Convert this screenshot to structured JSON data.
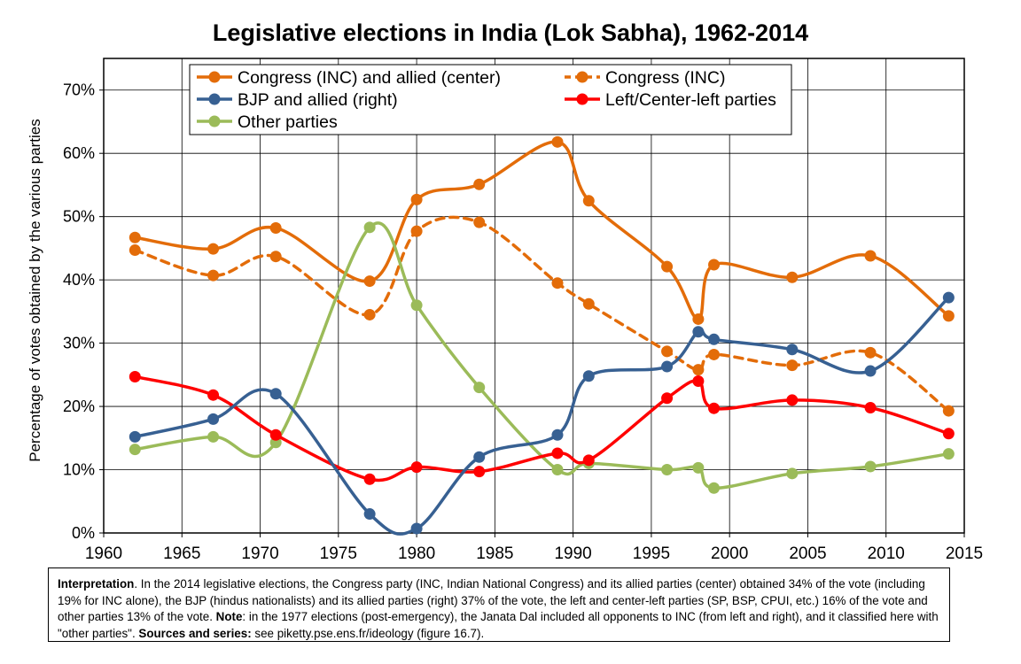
{
  "chart_data": {
    "type": "line",
    "title": "Legislative elections in India (Lok Sabha), 1962-2014",
    "xlabel": "",
    "ylabel": "Percentage of votes obtained by the various parties",
    "xlim": [
      1960,
      2015
    ],
    "ylim": [
      0,
      0.75
    ],
    "x_ticks": [
      1960,
      1965,
      1970,
      1975,
      1980,
      1985,
      1990,
      1995,
      2000,
      2005,
      2010,
      2015
    ],
    "y_ticks": [
      0,
      0.1,
      0.2,
      0.3,
      0.4,
      0.5,
      0.6,
      0.7
    ],
    "y_tick_labels": [
      "0%",
      "10%",
      "20%",
      "30%",
      "40%",
      "50%",
      "60%",
      "70%"
    ],
    "grid": true,
    "legend_position": "top",
    "series": [
      {
        "name": "Congress (INC) and allied (center)",
        "color": "#E36C09",
        "dashed": false,
        "x": [
          1962,
          1967,
          1971,
          1977,
          1980,
          1984,
          1989,
          1991,
          1996,
          1998,
          1999,
          2004,
          2009,
          2014
        ],
        "y": [
          0.467,
          0.449,
          0.482,
          0.398,
          0.527,
          0.551,
          0.618,
          0.525,
          0.421,
          0.338,
          0.424,
          0.404,
          0.438,
          0.343
        ]
      },
      {
        "name": "Congress (INC)",
        "color": "#E36C09",
        "dashed": true,
        "x": [
          1962,
          1967,
          1971,
          1977,
          1980,
          1984,
          1989,
          1991,
          1996,
          1998,
          1999,
          2004,
          2009,
          2014
        ],
        "y": [
          0.447,
          0.407,
          0.437,
          0.345,
          0.477,
          0.491,
          0.395,
          0.362,
          0.287,
          0.258,
          0.282,
          0.265,
          0.285,
          0.193
        ]
      },
      {
        "name": "BJP and allied (right)",
        "color": "#376092",
        "dashed": false,
        "x": [
          1962,
          1967,
          1971,
          1977,
          1980,
          1984,
          1989,
          1991,
          1996,
          1998,
          1999,
          2004,
          2009,
          2014
        ],
        "y": [
          0.152,
          0.18,
          0.22,
          0.03,
          0.007,
          0.12,
          0.155,
          0.248,
          0.263,
          0.318,
          0.306,
          0.29,
          0.256,
          0.372
        ]
      },
      {
        "name": "Left/Center-left parties",
        "color": "#FF0000",
        "dashed": false,
        "x": [
          1962,
          1967,
          1971,
          1977,
          1980,
          1984,
          1989,
          1991,
          1996,
          1998,
          1999,
          2004,
          2009,
          2014
        ],
        "y": [
          0.247,
          0.218,
          0.155,
          0.085,
          0.104,
          0.097,
          0.126,
          0.115,
          0.213,
          0.24,
          0.197,
          0.21,
          0.198,
          0.157
        ]
      },
      {
        "name": "Other parties",
        "color": "#9BBB59",
        "dashed": false,
        "x": [
          1962,
          1967,
          1971,
          1977,
          1980,
          1984,
          1989,
          1991,
          1996,
          1998,
          1999,
          2004,
          2009,
          2014
        ],
        "y": [
          0.132,
          0.152,
          0.143,
          0.483,
          0.36,
          0.23,
          0.1,
          0.11,
          0.1,
          0.103,
          0.071,
          0.094,
          0.105,
          0.125
        ]
      }
    ]
  },
  "note": {
    "interpretation_label": "Interpretation",
    "interpretation_text": ". In the 2014 legislative elections, the Congress party (INC, Indian National Congress) and its allied parties (center) obtained 34% of the vote (including 19% for INC alone), the BJP (hindus nationalists) and its allied parties (right) 37% of the vote, the left and center-left parties (SP, BSP, CPUI, etc.) 16% of the vote and other parties 13% of the vote. ",
    "note_label": "Note",
    "note_text": ": in the 1977 elections (post-emergency), the Janata Dal included all opponents to INC (from left and right), and it classified here with \"other parties\".  ",
    "sources_label": "Sources and series:",
    "sources_text": " see piketty.pse.ens.fr/ideology (figure 16.7)."
  }
}
